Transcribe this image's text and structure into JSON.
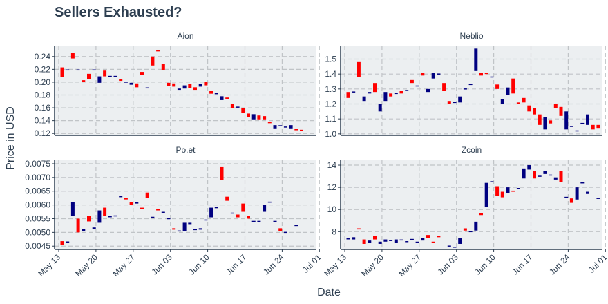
{
  "chart_data": {
    "type": "candlestick",
    "title": "Sellers Exhausted?",
    "xlabel": "Date",
    "ylabel": "Price in USD",
    "x_tick_labels": [
      "May 13",
      "May 20",
      "May 27",
      "Jun 03",
      "Jun 10",
      "Jun 17",
      "Jun 24",
      "Jul 01"
    ],
    "colors": {
      "increasing": "#000080",
      "decreasing": "#ff0000",
      "panel_bg": "#eceff1",
      "grid": "#c0c4c7",
      "axis": "#2d3e50"
    },
    "grid": true,
    "facets": [
      {
        "name": "Aion",
        "yticks": [
          0.12,
          0.14,
          0.16,
          0.18,
          0.2,
          0.22,
          0.24
        ],
        "ylim": [
          0.117,
          0.257
        ],
        "candles": [
          [
            0,
            0.223,
            0.208
          ],
          [
            1,
            0.219,
            0.219
          ],
          [
            2,
            0.246,
            0.237
          ],
          [
            3,
            0.219,
            0.219
          ],
          [
            4,
            0.203,
            0.2
          ],
          [
            5,
            0.213,
            0.205
          ],
          [
            6,
            0.219,
            0.219
          ],
          [
            7,
            0.199,
            0.209
          ],
          [
            8,
            0.218,
            0.209
          ],
          [
            9,
            0.209,
            0.209
          ],
          [
            10,
            0.209,
            0.209
          ],
          [
            11,
            0.205,
            0.202
          ],
          [
            12,
            0.2,
            0.2
          ],
          [
            13,
            0.196,
            0.199
          ],
          [
            14,
            0.198,
            0.192
          ],
          [
            15,
            0.216,
            0.211
          ],
          [
            16,
            0.191,
            0.191
          ],
          [
            17,
            0.24,
            0.226
          ],
          [
            18,
            0.25,
            0.248
          ],
          [
            19,
            0.229,
            0.219
          ],
          [
            20,
            0.199,
            0.194
          ],
          [
            21,
            0.198,
            0.193
          ],
          [
            22,
            0.188,
            0.19
          ],
          [
            23,
            0.19,
            0.195
          ],
          [
            24,
            0.197,
            0.191
          ],
          [
            25,
            0.192,
            0.188
          ],
          [
            26,
            0.193,
            0.197
          ],
          [
            27,
            0.2,
            0.195
          ],
          [
            28,
            0.186,
            0.182
          ],
          [
            29,
            0.182,
            0.182
          ],
          [
            30,
            0.172,
            0.178
          ],
          [
            31,
            0.176,
            0.174
          ],
          [
            32,
            0.166,
            0.16
          ],
          [
            33,
            0.161,
            0.161
          ],
          [
            34,
            0.16,
            0.152
          ],
          [
            35,
            0.151,
            0.145
          ],
          [
            36,
            0.142,
            0.15
          ],
          [
            37,
            0.148,
            0.142
          ],
          [
            38,
            0.147,
            0.142
          ],
          [
            39,
            0.138,
            0.136
          ],
          [
            40,
            0.128,
            0.133
          ],
          [
            41,
            0.132,
            0.132
          ],
          [
            42,
            0.13,
            0.13
          ],
          [
            43,
            0.128,
            0.133
          ],
          [
            44,
            0.127,
            0.125
          ],
          [
            45,
            0.125,
            0.124
          ]
        ]
      },
      {
        "name": "Neblio",
        "yticks": [
          1.0,
          1.1,
          1.2,
          1.3,
          1.4,
          1.5
        ],
        "ylim": [
          0.99,
          1.59
        ],
        "candles": [
          [
            0,
            1.28,
            1.24
          ],
          [
            1,
            1.28,
            1.28
          ],
          [
            2,
            1.48,
            1.38
          ],
          [
            3,
            1.22,
            1.25
          ],
          [
            4,
            1.27,
            1.28
          ],
          [
            5,
            1.34,
            1.28
          ],
          [
            6,
            1.15,
            1.2
          ],
          [
            7,
            1.22,
            1.28
          ],
          [
            8,
            1.27,
            1.25
          ],
          [
            9,
            1.27,
            1.27
          ],
          [
            10,
            1.29,
            1.27
          ],
          [
            11,
            1.29,
            1.29
          ],
          [
            12,
            1.36,
            1.34
          ],
          [
            13,
            1.32,
            1.32
          ],
          [
            14,
            1.41,
            1.39
          ],
          [
            15,
            1.28,
            1.3
          ],
          [
            16,
            1.37,
            1.41
          ],
          [
            17,
            1.4,
            1.4
          ],
          [
            18,
            1.34,
            1.29
          ],
          [
            19,
            1.22,
            1.2
          ],
          [
            20,
            1.21,
            1.21
          ],
          [
            21,
            1.21,
            1.25
          ],
          [
            22,
            1.3,
            1.3
          ],
          [
            23,
            1.33,
            1.33
          ],
          [
            24,
            1.42,
            1.57
          ],
          [
            25,
            1.41,
            1.39
          ],
          [
            26,
            1.41,
            1.4
          ],
          [
            27,
            1.38,
            1.38
          ],
          [
            28,
            1.33,
            1.3
          ],
          [
            29,
            1.2,
            1.23
          ],
          [
            30,
            1.26,
            1.31
          ],
          [
            31,
            1.37,
            1.27
          ],
          [
            32,
            1.21,
            1.2
          ],
          [
            33,
            1.24,
            1.21
          ],
          [
            34,
            1.19,
            1.15
          ],
          [
            35,
            1.17,
            1.13
          ],
          [
            36,
            1.13,
            1.06
          ],
          [
            37,
            1.03,
            1.11
          ],
          [
            38,
            1.09,
            1.07
          ],
          [
            39,
            1.2,
            1.17
          ],
          [
            40,
            1.18,
            1.12
          ],
          [
            41,
            1.03,
            1.15
          ],
          [
            42,
            1.05,
            1.05
          ],
          [
            43,
            1.02,
            1.02
          ],
          [
            44,
            1.07,
            1.07
          ],
          [
            45,
            1.06,
            1.13
          ],
          [
            46,
            1.06,
            1.03
          ],
          [
            47,
            1.06,
            1.04
          ]
        ]
      },
      {
        "name": "Po.et",
        "yticks": [
          0.0045,
          0.005,
          0.0055,
          0.006,
          0.0065,
          0.007,
          0.0075
        ],
        "ylim": [
          0.00438,
          0.00765
        ],
        "candles": [
          [
            0,
            0.00468,
            0.00455
          ],
          [
            1,
            0.00465,
            0.00465
          ],
          [
            2,
            0.0056,
            0.0061
          ],
          [
            3,
            0.0055,
            0.005
          ],
          [
            4,
            0.00505,
            0.00512
          ],
          [
            5,
            0.0056,
            0.0054
          ],
          [
            6,
            0.00512,
            0.00518
          ],
          [
            7,
            0.00535,
            0.0058
          ],
          [
            8,
            0.0059,
            0.0056
          ],
          [
            9,
            0.00557,
            0.00557
          ],
          [
            10,
            0.0056,
            0.0056
          ],
          [
            11,
            0.0063,
            0.0063
          ],
          [
            12,
            0.00625,
            0.0062
          ],
          [
            13,
            0.0061,
            0.006
          ],
          [
            14,
            0.00605,
            0.0061
          ],
          [
            15,
            0.0059,
            0.00585
          ],
          [
            16,
            0.00645,
            0.00625
          ],
          [
            17,
            0.00555,
            0.00555
          ],
          [
            18,
            0.00585,
            0.0058
          ],
          [
            19,
            0.0057,
            0.00575
          ],
          [
            20,
            0.0055,
            0.0055
          ],
          [
            21,
            0.00515,
            0.0051
          ],
          [
            22,
            0.00505,
            0.00505
          ],
          [
            23,
            0.00505,
            0.00535
          ],
          [
            24,
            0.0053,
            0.00535
          ],
          [
            25,
            0.0051,
            0.0051
          ],
          [
            26,
            0.0051,
            0.00515
          ],
          [
            27,
            0.00545,
            0.00545
          ],
          [
            28,
            0.00555,
            0.0059
          ],
          [
            29,
            0.0059,
            0.0059
          ],
          [
            30,
            0.0074,
            0.0069
          ],
          [
            31,
            0.0063,
            0.00615
          ],
          [
            32,
            0.0057,
            0.0057
          ],
          [
            33,
            0.00565,
            0.00555
          ],
          [
            34,
            0.00605,
            0.00575
          ],
          [
            35,
            0.0056,
            0.0055
          ],
          [
            36,
            0.0054,
            0.0054
          ],
          [
            37,
            0.0054,
            0.0054
          ],
          [
            38,
            0.00575,
            0.006
          ],
          [
            39,
            0.0061,
            0.0061
          ],
          [
            40,
            0.0054,
            0.0054
          ],
          [
            41,
            0.00515,
            0.00505
          ],
          [
            42,
            0.005,
            0.005
          ],
          [
            44,
            0.00525,
            0.00525
          ]
        ]
      },
      {
        "name": "Zcoin",
        "yticks": [
          8,
          10,
          12,
          14
        ],
        "ylim": [
          6.4,
          14.5
        ],
        "candles": [
          [
            0,
            7.35,
            7.35
          ],
          [
            1,
            7.3,
            7.5
          ],
          [
            2,
            8.3,
            8.2
          ],
          [
            3,
            7.3,
            6.9
          ],
          [
            4,
            7.0,
            7.2
          ],
          [
            5,
            7.6,
            7.3
          ],
          [
            6,
            6.9,
            7.1
          ],
          [
            7,
            7.1,
            7.3
          ],
          [
            8,
            7.2,
            7.2
          ],
          [
            9,
            7.0,
            7.3
          ],
          [
            10,
            7.25,
            7.25
          ],
          [
            11,
            7.1,
            7.1
          ],
          [
            12,
            7.3,
            7.3
          ],
          [
            13,
            7.0,
            7.1
          ],
          [
            14,
            7.2,
            7.4
          ],
          [
            15,
            7.7,
            7.4
          ],
          [
            16,
            7.1,
            7.0
          ],
          [
            17,
            7.6,
            7.5
          ],
          [
            19,
            6.7,
            6.7
          ],
          [
            20,
            6.6,
            6.6
          ],
          [
            21,
            6.9,
            7.4
          ],
          [
            22,
            8.3,
            8.1
          ],
          [
            23,
            8.0,
            8.0
          ],
          [
            24,
            8.1,
            8.9
          ],
          [
            25,
            9.7,
            9.5
          ],
          [
            26,
            10.2,
            12.4
          ],
          [
            27,
            12.5,
            12.5
          ],
          [
            28,
            12.1,
            11.2
          ],
          [
            29,
            11.6,
            11.1
          ],
          [
            30,
            11.5,
            12.0
          ],
          [
            31,
            11.7,
            11.6
          ],
          [
            32,
            11.9,
            11.9
          ],
          [
            33,
            12.8,
            13.7
          ],
          [
            34,
            13.6,
            14.0
          ],
          [
            35,
            13.5,
            12.8
          ],
          [
            36,
            13.0,
            13.0
          ],
          [
            37,
            13.2,
            13.5
          ],
          [
            38,
            13.1,
            13.1
          ],
          [
            39,
            12.7,
            12.9
          ],
          [
            40,
            13.5,
            12.5
          ],
          [
            41,
            11.1,
            11.1
          ],
          [
            42,
            11.0,
            10.6
          ],
          [
            43,
            10.9,
            12.0
          ],
          [
            44,
            12.4,
            12.4
          ],
          [
            45,
            11.4,
            11.6
          ],
          [
            47,
            11.0,
            11.0
          ]
        ]
      }
    ]
  }
}
